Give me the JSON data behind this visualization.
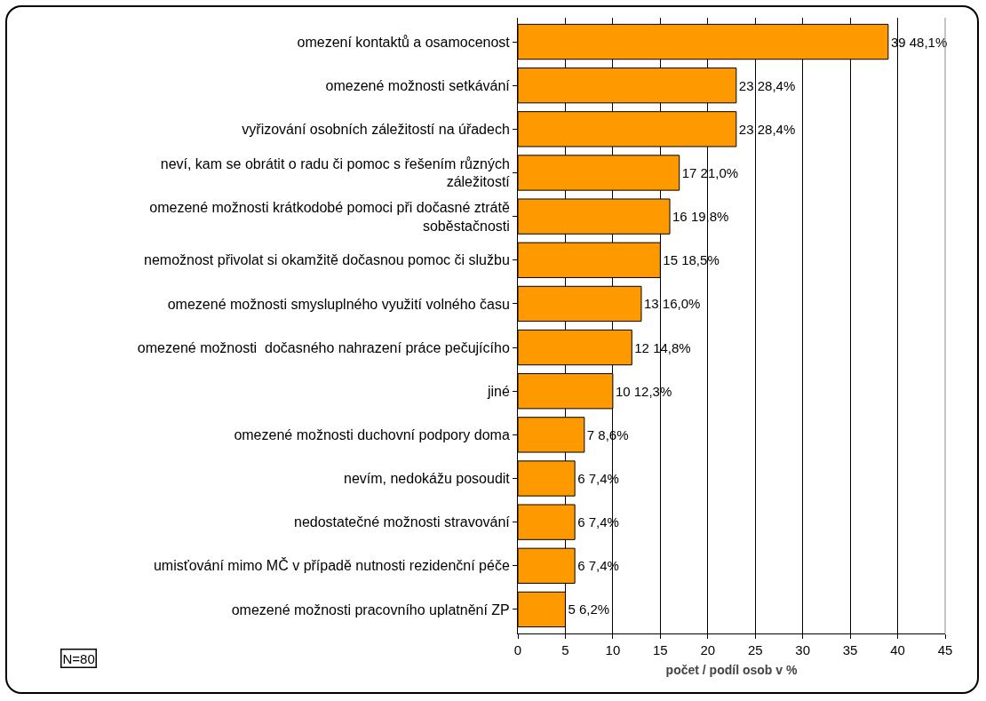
{
  "chart_data": {
    "type": "bar",
    "orientation": "horizontal",
    "xlabel": "počet / podíl osob v %",
    "categories": [
      "omezení kontaktů a osamocenost",
      "omezené možnosti setkávání",
      "vyřizování osobních záležitostí na úřadech",
      "neví, kam se obrátit o radu či pomoc s řešením různých záležitostí",
      "omezené možnosti krátkodobé pomoci při dočasné ztrátě soběstačnosti",
      "nemožnost přivolat si okamžitě dočasnou pomoc či službu",
      "omezené možnosti smysluplného využití volného času",
      "omezené možnosti  dočasného nahrazení práce pečujícího",
      "jiné",
      "omezené možnosti duchovní podpory doma",
      "nevím, nedokážu posoudit",
      "nedostatečné možnosti stravování",
      "umisťování mimo MČ v případě nutnosti rezidenční péče",
      "omezené možnosti pracovního uplatnění ZP"
    ],
    "values": [
      39,
      23,
      23,
      17,
      16,
      15,
      13,
      12,
      10,
      7,
      6,
      6,
      6,
      5
    ],
    "value_labels": [
      "39 48,1%",
      "23 28,4%",
      "23 28,4%",
      "17 21,0%",
      "16 19,8%",
      "15 18,5%",
      "13 16,0%",
      "12 14,8%",
      "10 12,3%",
      "7 8,6%",
      "6 7,4%",
      "6 7,4%",
      "6 7,4%",
      "5 6,2%"
    ],
    "color": "#ff9900",
    "xlim": [
      0,
      45
    ],
    "xticks": [
      0,
      5,
      10,
      15,
      20,
      25,
      30,
      35,
      40,
      45
    ],
    "grid": "x",
    "annotations": [
      "N=80"
    ]
  }
}
